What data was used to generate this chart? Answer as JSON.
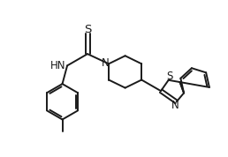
{
  "background_color": "#ffffff",
  "line_color": "#1a1a1a",
  "line_width": 1.4,
  "font_size": 8.5,
  "figsize": [
    2.58,
    1.78
  ],
  "dpi": 100,
  "xlim": [
    0.0,
    10.0
  ],
  "ylim": [
    0.0,
    7.0
  ]
}
